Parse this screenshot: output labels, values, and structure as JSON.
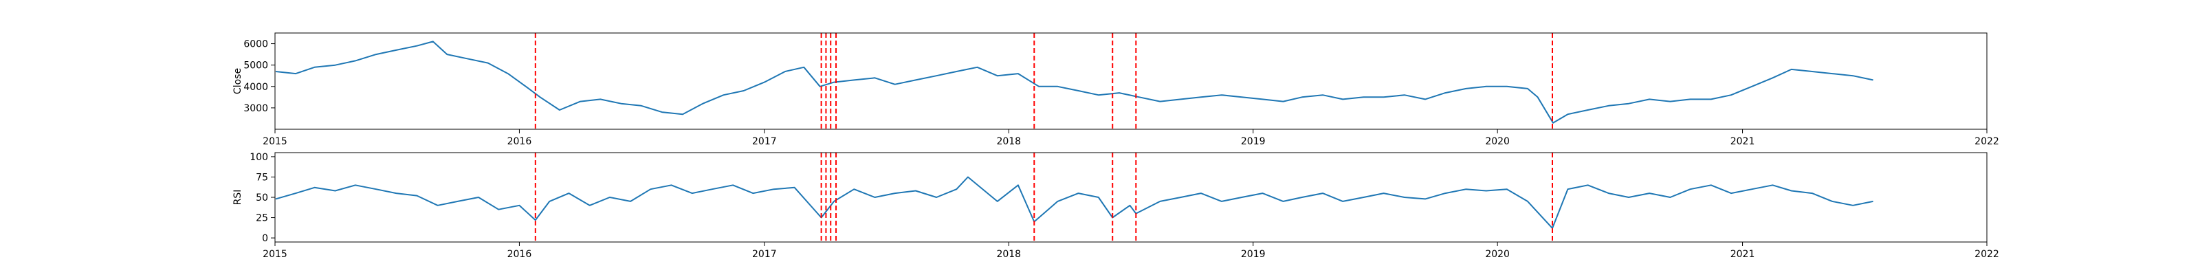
{
  "chart_data": [
    {
      "type": "line",
      "title": "",
      "xlabel": "",
      "ylabel": "Close",
      "x_ticks": [
        "2015",
        "2016",
        "2017",
        "2018",
        "2019",
        "2020",
        "2021",
        "2022"
      ],
      "xlim": [
        "2015-01-01",
        "2022-01-01"
      ],
      "ylim": [
        2000,
        6500
      ],
      "y_ticks": [
        3000,
        4000,
        5000,
        6000
      ],
      "grid": false,
      "series": [
        {
          "color": "#1f77b4",
          "x": [
            "2015-01-02",
            "2015-02-01",
            "2015-03-01",
            "2015-04-01",
            "2015-05-01",
            "2015-06-01",
            "2015-07-01",
            "2015-08-01",
            "2015-08-25",
            "2015-09-15",
            "2015-10-15",
            "2015-11-15",
            "2015-12-15",
            "2016-01-15",
            "2016-02-01",
            "2016-03-01",
            "2016-04-01",
            "2016-05-01",
            "2016-06-01",
            "2016-07-01",
            "2016-08-01",
            "2016-09-01",
            "2016-10-01",
            "2016-11-01",
            "2016-12-01",
            "2017-01-01",
            "2017-02-01",
            "2017-03-01",
            "2017-03-25",
            "2017-04-15",
            "2017-05-15",
            "2017-06-15",
            "2017-07-15",
            "2017-08-15",
            "2017-09-15",
            "2017-10-15",
            "2017-11-15",
            "2017-12-15",
            "2018-01-15",
            "2018-02-15",
            "2018-03-15",
            "2018-04-15",
            "2018-05-15",
            "2018-06-15",
            "2018-07-15",
            "2018-08-15",
            "2018-09-15",
            "2018-10-15",
            "2018-11-15",
            "2018-12-15",
            "2019-01-15",
            "2019-02-15",
            "2019-03-15",
            "2019-04-15",
            "2019-05-15",
            "2019-06-15",
            "2019-07-15",
            "2019-08-15",
            "2019-09-15",
            "2019-10-15",
            "2019-11-15",
            "2019-12-15",
            "2020-01-15",
            "2020-02-15",
            "2020-03-01",
            "2020-03-24",
            "2020-04-15",
            "2020-05-15",
            "2020-06-15",
            "2020-07-15",
            "2020-08-15",
            "2020-09-15",
            "2020-10-15",
            "2020-11-15",
            "2020-12-15",
            "2021-01-15",
            "2021-02-15",
            "2021-03-15",
            "2021-04-15",
            "2021-05-15",
            "2021-06-15",
            "2021-07-15"
          ],
          "y": [
            4700,
            4600,
            4900,
            5000,
            5200,
            5500,
            5700,
            5900,
            6100,
            5500,
            5300,
            5100,
            4600,
            3900,
            3500,
            2900,
            3300,
            3400,
            3200,
            3100,
            2800,
            2700,
            3200,
            3600,
            3800,
            4200,
            4700,
            4900,
            4000,
            4200,
            4300,
            4400,
            4100,
            4300,
            4500,
            4700,
            4900,
            4500,
            4600,
            4000,
            4000,
            3800,
            3600,
            3700,
            3500,
            3300,
            3400,
            3500,
            3600,
            3500,
            3400,
            3300,
            3500,
            3600,
            3400,
            3500,
            3500,
            3600,
            3400,
            3700,
            3900,
            4000,
            4000,
            3900,
            3500,
            2300,
            2700,
            2900,
            3100,
            3200,
            3400,
            3300,
            3400,
            3400,
            3600,
            4000,
            4400,
            4800,
            4700,
            4600,
            4500,
            4300
          ]
        }
      ],
      "vlines": {
        "color": "#ff0000",
        "style": "dashed",
        "x": [
          "2016-01-25",
          "2017-03-27",
          "2017-04-03",
          "2017-04-10",
          "2017-04-18",
          "2018-02-08",
          "2018-06-05",
          "2018-07-10",
          "2020-03-23"
        ]
      }
    },
    {
      "type": "line",
      "title": "",
      "xlabel": "",
      "ylabel": "RSI",
      "x_ticks": [
        "2015",
        "2016",
        "2017",
        "2018",
        "2019",
        "2020",
        "2021",
        "2022"
      ],
      "xlim": [
        "2015-01-01",
        "2022-01-01"
      ],
      "ylim": [
        -5,
        105
      ],
      "y_ticks": [
        0,
        25,
        50,
        75,
        100
      ],
      "grid": false,
      "series": [
        {
          "color": "#1f77b4",
          "x": [
            "2015-01-02",
            "2015-02-01",
            "2015-03-01",
            "2015-04-01",
            "2015-05-01",
            "2015-06-01",
            "2015-07-01",
            "2015-08-01",
            "2015-09-01",
            "2015-10-01",
            "2015-11-01",
            "2015-12-01",
            "2016-01-01",
            "2016-01-25",
            "2016-02-15",
            "2016-03-15",
            "2016-04-15",
            "2016-05-15",
            "2016-06-15",
            "2016-07-15",
            "2016-08-15",
            "2016-09-15",
            "2016-10-15",
            "2016-11-15",
            "2016-12-15",
            "2017-01-15",
            "2017-02-15",
            "2017-03-27",
            "2017-04-15",
            "2017-05-15",
            "2017-06-15",
            "2017-07-15",
            "2017-08-15",
            "2017-09-15",
            "2017-10-15",
            "2017-11-01",
            "2017-12-15",
            "2018-01-15",
            "2018-02-08",
            "2018-03-15",
            "2018-04-15",
            "2018-05-15",
            "2018-06-05",
            "2018-07-01",
            "2018-07-10",
            "2018-08-15",
            "2018-09-15",
            "2018-10-15",
            "2018-11-15",
            "2018-12-15",
            "2019-01-15",
            "2019-02-15",
            "2019-03-15",
            "2019-04-15",
            "2019-05-15",
            "2019-06-15",
            "2019-07-15",
            "2019-08-15",
            "2019-09-15",
            "2019-10-15",
            "2019-11-15",
            "2019-12-15",
            "2020-01-15",
            "2020-02-15",
            "2020-03-23",
            "2020-04-15",
            "2020-05-15",
            "2020-06-15",
            "2020-07-15",
            "2020-08-15",
            "2020-09-15",
            "2020-10-15",
            "2020-11-15",
            "2020-12-15",
            "2021-01-15",
            "2021-02-15",
            "2021-03-15",
            "2021-04-15",
            "2021-05-15",
            "2021-06-15",
            "2021-07-15"
          ],
          "y": [
            48,
            55,
            62,
            58,
            65,
            60,
            55,
            52,
            40,
            45,
            50,
            35,
            40,
            22,
            45,
            55,
            40,
            50,
            45,
            60,
            65,
            55,
            60,
            65,
            55,
            60,
            62,
            25,
            45,
            60,
            50,
            55,
            58,
            50,
            60,
            75,
            45,
            65,
            20,
            45,
            55,
            50,
            25,
            40,
            30,
            45,
            50,
            55,
            45,
            50,
            55,
            45,
            50,
            55,
            45,
            50,
            55,
            50,
            48,
            55,
            60,
            58,
            60,
            45,
            12,
            60,
            65,
            55,
            50,
            55,
            50,
            60,
            65,
            55,
            60,
            65,
            58,
            55,
            45,
            40,
            45
          ]
        }
      ],
      "vlines": {
        "color": "#ff0000",
        "style": "dashed",
        "x": [
          "2016-01-25",
          "2017-03-27",
          "2017-04-03",
          "2017-04-10",
          "2017-04-18",
          "2018-02-08",
          "2018-06-05",
          "2018-07-10",
          "2020-03-23"
        ]
      }
    }
  ]
}
